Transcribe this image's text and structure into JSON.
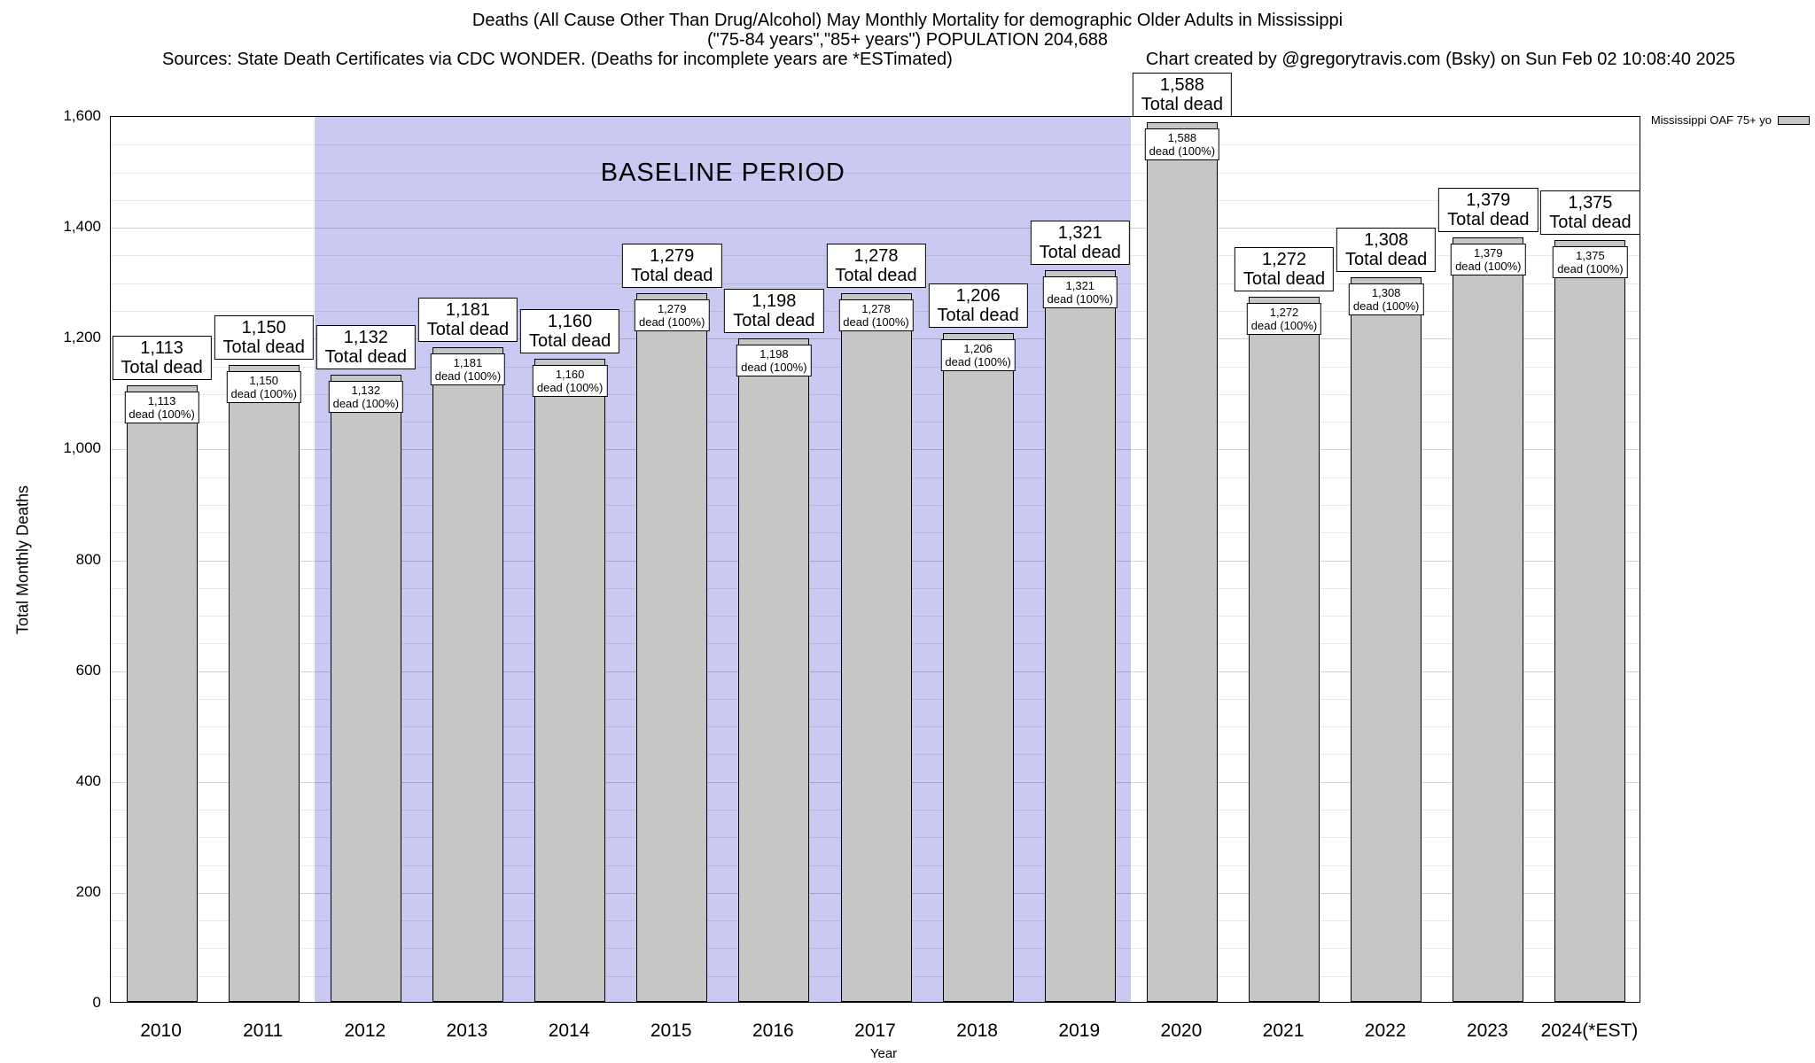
{
  "chart_data": {
    "type": "bar",
    "title": "Deaths (All Cause Other Than Drug/Alcohol) May Monthly Mortality for demographic Older Adults in Mississippi",
    "subtitle": "(\"75-84 years\",\"85+ years\") POPULATION 204,688",
    "source_note": "Sources: State Death Certificates via CDC WONDER. (Deaths for incomplete years are *ESTimated)",
    "credit_note": "Chart created by @gregorytravis.com (Bsky) on Sun Feb 02 10:08:40 2025",
    "xlabel": "Year",
    "ylabel": "Total Monthly Deaths",
    "ylim": [
      0,
      1600
    ],
    "ytick_interval": 200,
    "minor_gridline_interval": 50,
    "grid": true,
    "legend": {
      "label": "Mississippi OAF 75+ yo",
      "position": "top-right"
    },
    "categories": [
      "2010",
      "2011",
      "2012",
      "2013",
      "2014",
      "2015",
      "2016",
      "2017",
      "2018",
      "2019",
      "2020",
      "2021",
      "2022",
      "2023",
      "2024(*EST)"
    ],
    "values": [
      1113,
      1150,
      1132,
      1181,
      1160,
      1279,
      1198,
      1278,
      1206,
      1321,
      1588,
      1272,
      1308,
      1379,
      1375
    ],
    "bar_top_label_suffix": "Total dead",
    "bar_inner_label_suffix": "dead (100%)",
    "baseline_period": {
      "label": "BASELINE PERIOD",
      "start_category": "2012",
      "end_category": "2019"
    },
    "colors": {
      "bar_fill": "#c6c6c6",
      "bar_border": "#000000",
      "baseline_fill": "#c9c9f2",
      "background": "#ffffff"
    }
  }
}
